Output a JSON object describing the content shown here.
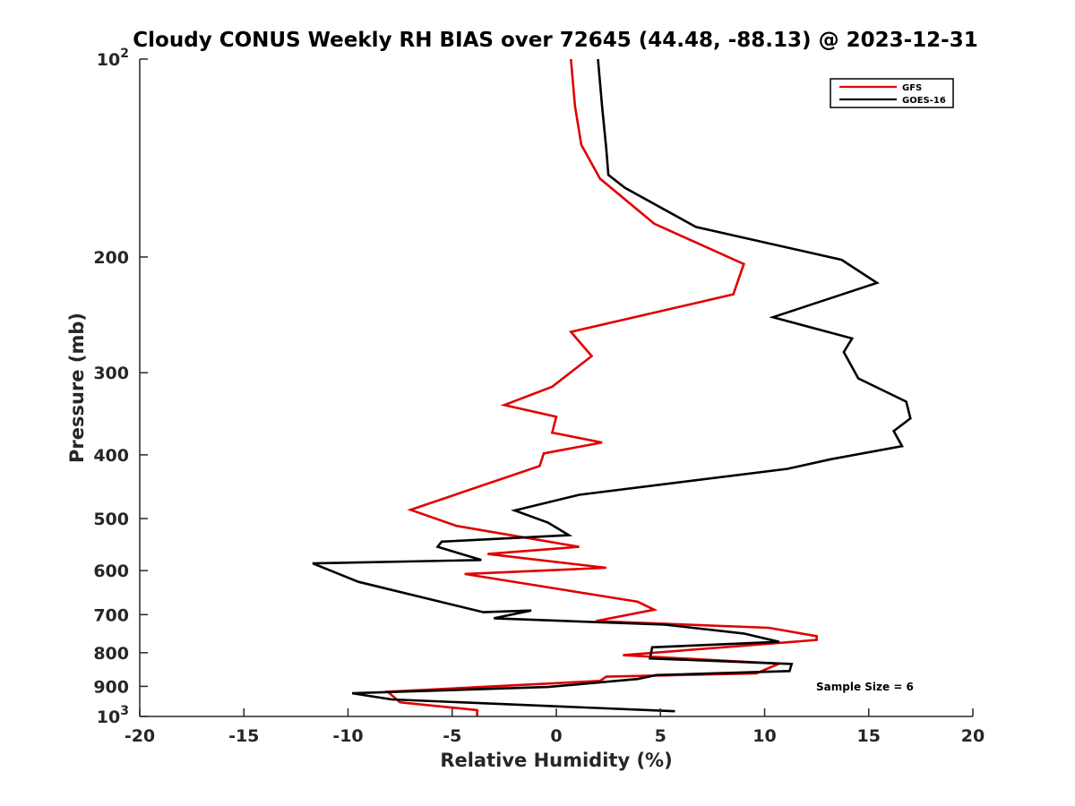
{
  "chart_data": {
    "type": "line",
    "title": "Cloudy CONUS Weekly RH BIAS over 72645 (44.48, -88.13) @ 2023-12-31",
    "xlabel": "Relative Humidity (%)",
    "ylabel": "Pressure (mb)",
    "xlim": [
      -20,
      20
    ],
    "ylim": [
      100,
      1000
    ],
    "y_scale": "log",
    "y_reversed": true,
    "grid": false,
    "legend_position": "top-right",
    "x_ticks": [
      "-20",
      "-15",
      "-10",
      "-5",
      "0",
      "5",
      "10",
      "15",
      "20"
    ],
    "y_ticks": [
      {
        "value": 100,
        "base": "10",
        "exp": "2"
      },
      {
        "value": 200,
        "label": "200"
      },
      {
        "value": 300,
        "label": "300"
      },
      {
        "value": 400,
        "label": "400"
      },
      {
        "value": 500,
        "label": "500"
      },
      {
        "value": 600,
        "label": "600"
      },
      {
        "value": 700,
        "label": "700"
      },
      {
        "value": 800,
        "label": "800"
      },
      {
        "value": 900,
        "label": "900"
      },
      {
        "value": 1000,
        "base": "10",
        "exp": "3"
      }
    ],
    "annotation": "Sample Size = 6",
    "series": [
      {
        "name": "GFS",
        "color": "#e00000",
        "x": [
          0.7,
          0.9,
          1.2,
          2.1,
          4.7,
          9.0,
          8.5,
          0.7,
          1.7,
          -0.2,
          -2.5,
          0.0,
          -0.2,
          2.2,
          -0.6,
          -0.8,
          -7.0,
          -4.8,
          1.1,
          -3.3,
          2.4,
          -4.4,
          3.9,
          4.7,
          1.9,
          10.2,
          12.5,
          12.5,
          3.2,
          10.7,
          9.6,
          2.4,
          2.1,
          -8.1,
          -7.5,
          -3.8,
          -3.8
        ],
        "y": [
          100,
          118,
          135,
          152,
          178,
          205,
          228,
          260,
          283,
          315,
          336,
          350,
          370,
          383,
          398,
          416,
          485,
          513,
          552,
          566,
          594,
          607,
          669,
          688,
          716,
          733,
          755,
          765,
          807,
          831,
          860,
          870,
          883,
          917,
          952,
          978,
          1000
        ]
      },
      {
        "name": "GOES-16",
        "color": "#000000",
        "x": [
          2.0,
          2.2,
          2.4,
          2.5,
          3.3,
          6.7,
          13.7,
          15.4,
          10.4,
          14.2,
          13.8,
          14.5,
          16.8,
          17.0,
          16.2,
          16.6,
          13.2,
          11.1,
          1.1,
          -2.0,
          -0.4,
          0.6,
          -5.5,
          -5.7,
          -3.6,
          -11.7,
          -9.5,
          -3.5,
          -1.2,
          -3.0,
          5.2,
          9.0,
          10.7,
          4.6,
          4.5,
          11.3,
          11.2,
          4.8,
          3.9,
          -0.4,
          -9.8,
          -7.9,
          5.7
        ],
        "y": [
          100,
          118,
          137,
          150,
          157,
          180,
          202,
          219,
          247,
          266,
          279,
          306,
          332,
          352,
          368,
          388,
          406,
          420,
          460,
          486,
          507,
          530,
          542,
          552,
          578,
          585,
          624,
          694,
          690,
          709,
          725,
          748,
          770,
          785,
          816,
          832,
          853,
          865,
          877,
          902,
          922,
          942,
          982
        ]
      }
    ]
  }
}
